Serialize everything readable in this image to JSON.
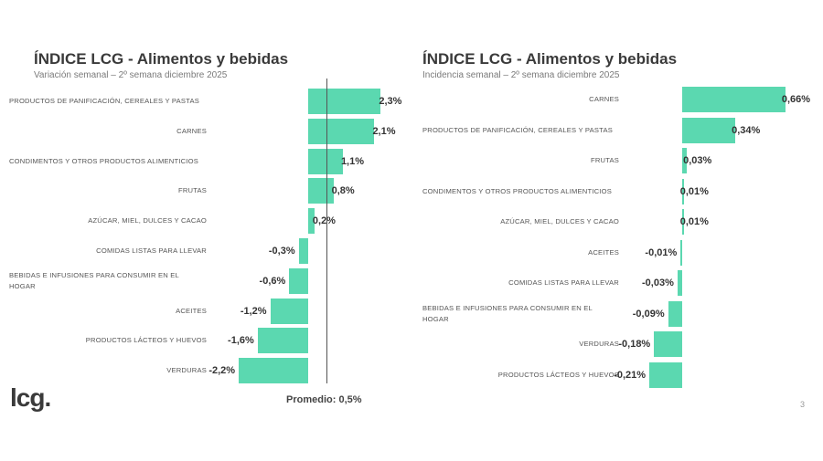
{
  "chart_data": [
    {
      "type": "bar",
      "orientation": "horizontal",
      "title": "ÍNDICE LCG - Alimentos y bebidas",
      "subtitle": "Variación semanal – 2º semana diciembre 2025",
      "categories": [
        "PRODUCTOS DE PANIFICACIÓN, CEREALES Y PASTAS",
        "CARNES",
        "CONDIMENTOS Y OTROS PRODUCTOS ALIMENTICIOS",
        "FRUTAS",
        "AZÚCAR, MIEL, DULCES Y CACAO",
        "COMIDAS LISTAS PARA LLEVAR",
        "BEBIDAS E INFUSIONES PARA CONSUMIR EN EL HOGAR",
        "ACEITES",
        "PRODUCTOS LÁCTEOS Y HUEVOS",
        "VERDURAS"
      ],
      "values": [
        2.3,
        2.1,
        1.1,
        0.8,
        0.2,
        -0.3,
        -0.6,
        -1.2,
        -1.6,
        -2.2
      ],
      "labels": [
        "2,3%",
        "2,1%",
        "1,1%",
        "0,8%",
        "0,2%",
        "-0,3%",
        "-0,6%",
        "-1,2%",
        "-1,6%",
        "-2,2%"
      ],
      "average": {
        "value": 0.5,
        "label": "Promedio: 0,5%"
      },
      "color": "#5bd8b0"
    },
    {
      "type": "bar",
      "orientation": "horizontal",
      "title": "ÍNDICE LCG - Alimentos y bebidas",
      "subtitle": "Incidencia semanal – 2º semana diciembre 2025",
      "categories": [
        "CARNES",
        "PRODUCTOS DE PANIFICACIÓN, CEREALES Y PASTAS",
        "FRUTAS",
        "CONDIMENTOS Y OTROS PRODUCTOS ALIMENTICIOS",
        "AZÚCAR, MIEL, DULCES Y CACAO",
        "ACEITES",
        "COMIDAS LISTAS PARA LLEVAR",
        "BEBIDAS E INFUSIONES PARA CONSUMIR EN EL HOGAR",
        "VERDURAS",
        "PRODUCTOS LÁCTEOS Y HUEVOS"
      ],
      "values": [
        0.66,
        0.34,
        0.03,
        0.01,
        0.01,
        -0.01,
        -0.03,
        -0.09,
        -0.18,
        -0.21
      ],
      "labels": [
        "0,66%",
        "0,34%",
        "0,03%",
        "0,01%",
        "0,01%",
        "-0,01%",
        "-0,03%",
        "-0,09%",
        "-0,18%",
        "-0,21%"
      ],
      "color": "#5bd8b0"
    }
  ],
  "footer": {
    "logo": "lcg.",
    "page_number": "3"
  }
}
